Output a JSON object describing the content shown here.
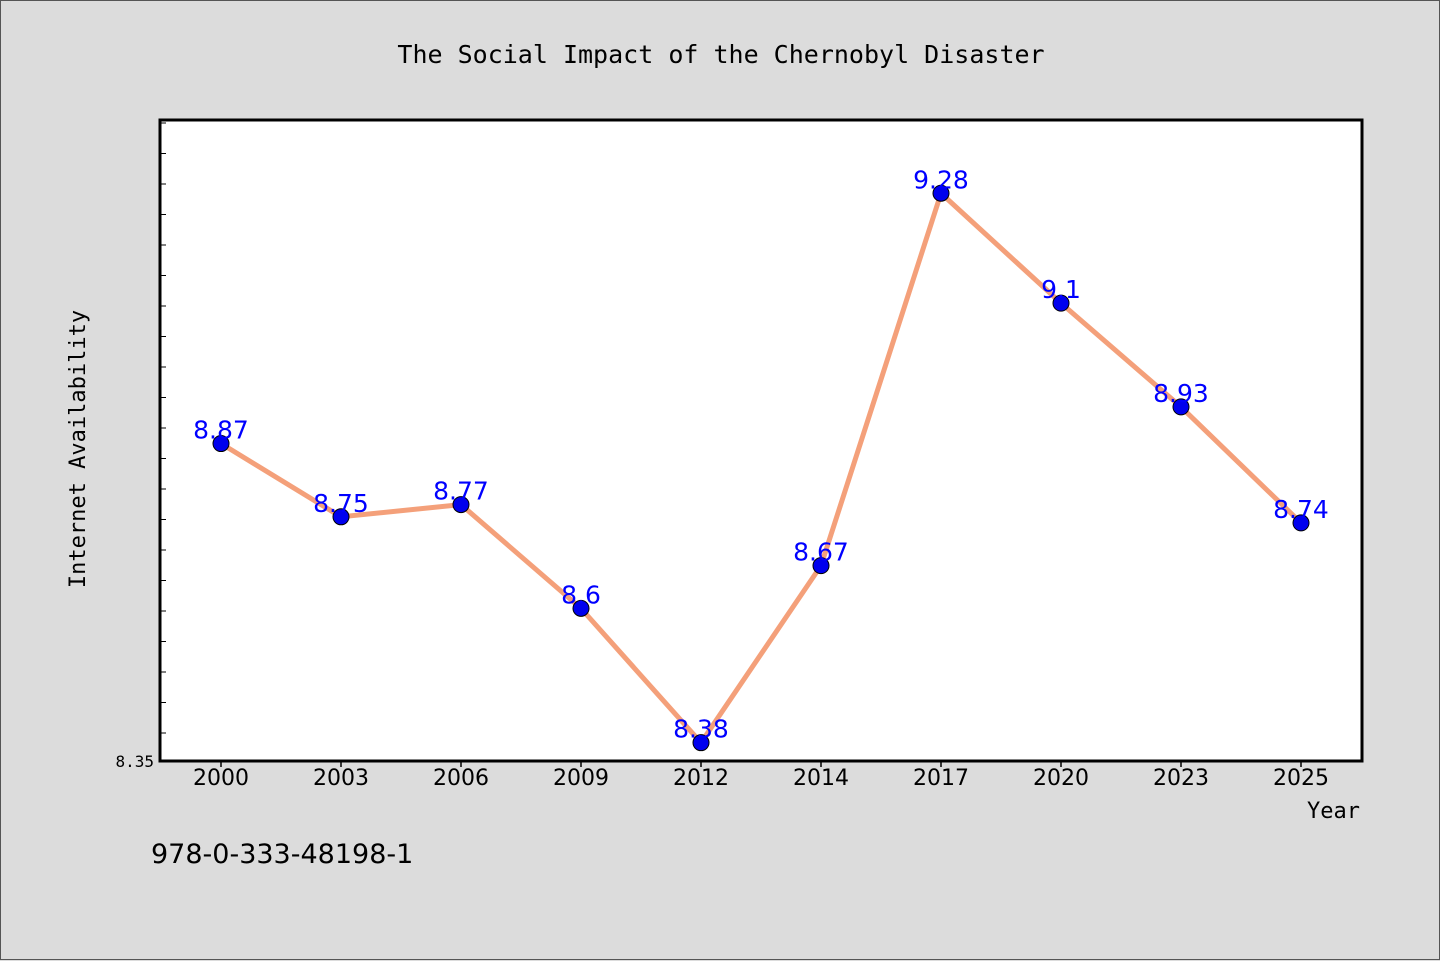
{
  "footer_code": "978-0-333-48198-1",
  "colors": {
    "background": "#dcdcdc",
    "plot_background": "#ffffff",
    "line": "#f4a07a",
    "marker": "#0000ee",
    "label": "#0000ff"
  },
  "chart_data": {
    "type": "line",
    "title": "The Social Impact of the Chernobyl Disaster",
    "xlabel": "Year",
    "ylabel": "Internet Availability",
    "x": [
      "2000",
      "2003",
      "2006",
      "2009",
      "2012",
      "2014",
      "2017",
      "2020",
      "2023",
      "2025"
    ],
    "series": [
      {
        "values": [
          8.87,
          8.75,
          8.77,
          8.6,
          8.38,
          8.67,
          9.28,
          9.1,
          8.93,
          8.74
        ],
        "labels": [
          "8.87",
          "8.75",
          "8.77",
          "8.6",
          "8.38",
          "8.67",
          "9.28",
          "9.1",
          "8.93",
          "8.74"
        ]
      }
    ],
    "ylim": [
      8.35,
      9.4
    ],
    "ymin_label": "8.35",
    "grid": false,
    "legend": "none"
  }
}
